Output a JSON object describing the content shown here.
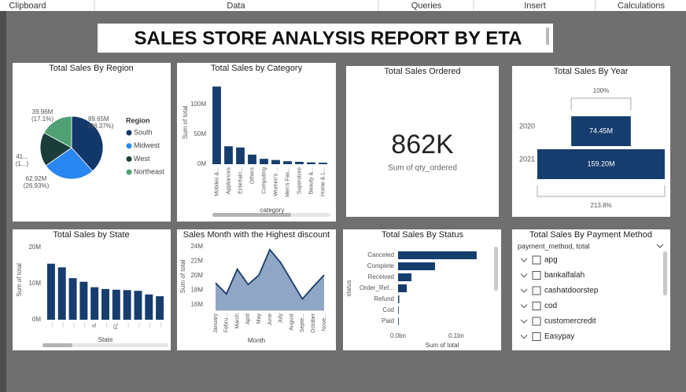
{
  "ribbon": [
    "Clipboard",
    "Data",
    "Queries",
    "Insert",
    "Calculations"
  ],
  "report_title": "SALES STORE ANALYSIS REPORT BY ETA",
  "chart_data": [
    {
      "type": "pie",
      "title": "Total Sales By Region",
      "legend_title": "Region",
      "categories": [
        "South",
        "Midwest",
        "West",
        "Northeast"
      ],
      "values": [
        89.65,
        62.92,
        41.12,
        39.96
      ],
      "value_labels": [
        "89.65M",
        "62.92M",
        "41...",
        "39.96M"
      ],
      "percent_labels": [
        "(38.37%)",
        "(26.93%)",
        "(1...)",
        "(17.1%)"
      ],
      "colors": [
        "#12386b",
        "#2a86f0",
        "#1b3d3a",
        "#4fa173"
      ]
    },
    {
      "type": "bar",
      "title": "Total Sales by Category",
      "xlabel": "category",
      "ylabel": "Sum of total",
      "categories": [
        "Mobiles &...",
        "Appliances",
        "Entertain...",
        "Others",
        "Computing",
        "Women's ...",
        "Men's Fas...",
        "Superstore",
        "Beauty &...",
        "Home & L..."
      ],
      "values": [
        130,
        30,
        28,
        16,
        9,
        7,
        5,
        4,
        3,
        2.5
      ],
      "ylim": [
        0,
        140
      ],
      "yticks": [
        {
          "value": 0,
          "label": "0M"
        },
        {
          "value": 50,
          "label": "50M"
        },
        {
          "value": 100,
          "label": "100M"
        }
      ],
      "color": "#163d6e"
    },
    {
      "type": "funnel",
      "title": "Total Sales By Year",
      "categories": [
        "2020",
        "2021"
      ],
      "values": [
        74.45,
        159.2
      ],
      "value_labels": [
        "74.45M",
        "159.20M"
      ],
      "top_label": "100%",
      "bottom_label": "213.8%",
      "color": "#163d6e"
    },
    {
      "type": "bar",
      "title": "Total Sales by State",
      "xlabel": "State",
      "ylabel": "Sum of total",
      "categories": [
        "...",
        "...",
        "...",
        "...",
        "IL",
        "...",
        "FL",
        "...",
        "...",
        "...",
        "..."
      ],
      "values": [
        15.5,
        14.5,
        11.5,
        10.5,
        9,
        8.5,
        8.3,
        8.2,
        8,
        7,
        6.5
      ],
      "ylim": [
        0,
        22
      ],
      "yticks": [
        {
          "value": 0,
          "label": "0M"
        },
        {
          "value": 10,
          "label": "10M"
        },
        {
          "value": 20,
          "label": "20M"
        }
      ],
      "color": "#163d6e"
    },
    {
      "type": "area",
      "title": "Sales Month with the Highest discount",
      "xlabel": "Month",
      "ylabel": "Sum of total",
      "categories": [
        "January",
        "Febru...",
        "March",
        "April",
        "May",
        "June",
        "July",
        "August",
        "Septe...",
        "October",
        "Nove..."
      ],
      "values": [
        19.0,
        17.5,
        20.9,
        18.8,
        20.1,
        23.6,
        21.8,
        19.3,
        16.8,
        18.5,
        20.1
      ],
      "ylim": [
        15.2,
        24.6
      ],
      "yticks": [
        {
          "value": 16,
          "label": "16M"
        },
        {
          "value": 18,
          "label": "18M"
        },
        {
          "value": 20,
          "label": "20M"
        },
        {
          "value": 22,
          "label": "22M"
        },
        {
          "value": 24,
          "label": "24M"
        }
      ],
      "color": "#8fa6c4",
      "line_color": "#1a3d6b"
    },
    {
      "type": "hbar",
      "title": "Total Sales By Status",
      "xlabel": "Sum of total",
      "ylabel": "status",
      "categories": [
        "Canceled",
        "Complete",
        "Received",
        "Order_Ref...",
        "Refund",
        "Cod",
        "Paid"
      ],
      "values": [
        0.135,
        0.0635,
        0.023,
        0.015,
        0.002,
        0.001,
        0.0005
      ],
      "xlim": [
        0,
        0.14
      ],
      "xticks": [
        {
          "value": 0,
          "label": "0.0bn"
        },
        {
          "value": 0.1,
          "label": "0.1bn"
        }
      ],
      "color": "#163d6e"
    }
  ],
  "card": {
    "title": "Total Sales Ordered",
    "value": "862K",
    "caption": "Sum of qty_ordered"
  },
  "slicer": {
    "title": "Total Sales By Payment Method",
    "header": "payment_method, total",
    "items": [
      "apg",
      "bankalfalah",
      "cashatdoorstep",
      "cod",
      "customercredit",
      "Easypay"
    ]
  }
}
